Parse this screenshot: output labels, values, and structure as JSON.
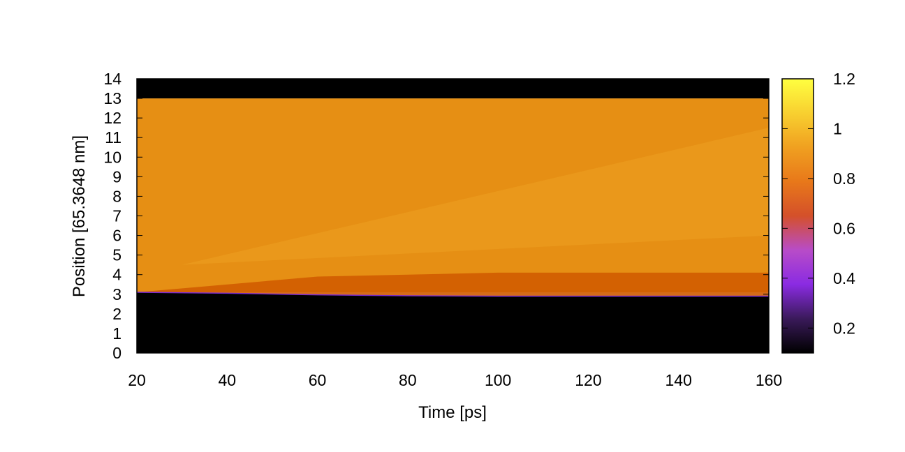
{
  "chart_data": {
    "type": "heatmap",
    "title": "",
    "xlabel": "Time [ps]",
    "ylabel": "Position [65.3648 nm]",
    "xlim": [
      20,
      160
    ],
    "ylim": [
      0,
      14
    ],
    "x_ticks": [
      "20",
      "40",
      "60",
      "80",
      "100",
      "120",
      "140",
      "160"
    ],
    "y_ticks": [
      "0",
      "1",
      "2",
      "3",
      "4",
      "5",
      "6",
      "7",
      "8",
      "9",
      "10",
      "11",
      "12",
      "13",
      "14"
    ],
    "colorbar": {
      "range": [
        0.1,
        1.2
      ],
      "ticks": [
        "0.2",
        "0.4",
        "0.6",
        "0.8",
        "1",
        "1.2"
      ],
      "colormap_stops": [
        "#000000",
        "#3a1a5a",
        "#8a2be2",
        "#b84cc8",
        "#d4502a",
        "#e8781a",
        "#f0a020",
        "#f8d030",
        "#ffff40"
      ]
    },
    "regions": [
      {
        "x": [
          20,
          160
        ],
        "y": [
          13,
          14
        ],
        "value": 0.0
      },
      {
        "x": [
          20,
          160
        ],
        "y": [
          0,
          3.1
        ],
        "value": 0.0
      },
      {
        "x": [
          20,
          160
        ],
        "y": [
          3.1,
          13
        ],
        "value": 0.97
      }
    ],
    "lower_boundary": {
      "x": [
        20,
        40,
        60,
        80,
        100,
        120,
        140,
        160
      ],
      "y": [
        3.1,
        3.05,
        2.97,
        2.92,
        2.9,
        2.9,
        2.9,
        2.9
      ]
    },
    "enhanced_band": {
      "x": [
        20,
        60,
        100,
        160
      ],
      "y_top": [
        3.1,
        3.9,
        4.1,
        4.1
      ],
      "value": 0.85
    },
    "colors": {
      "background": "#ffffff",
      "frame": "#000000",
      "fill_main": "#e68f14",
      "fill_band": "#d05c00",
      "fill_bright": "#eda020"
    }
  }
}
